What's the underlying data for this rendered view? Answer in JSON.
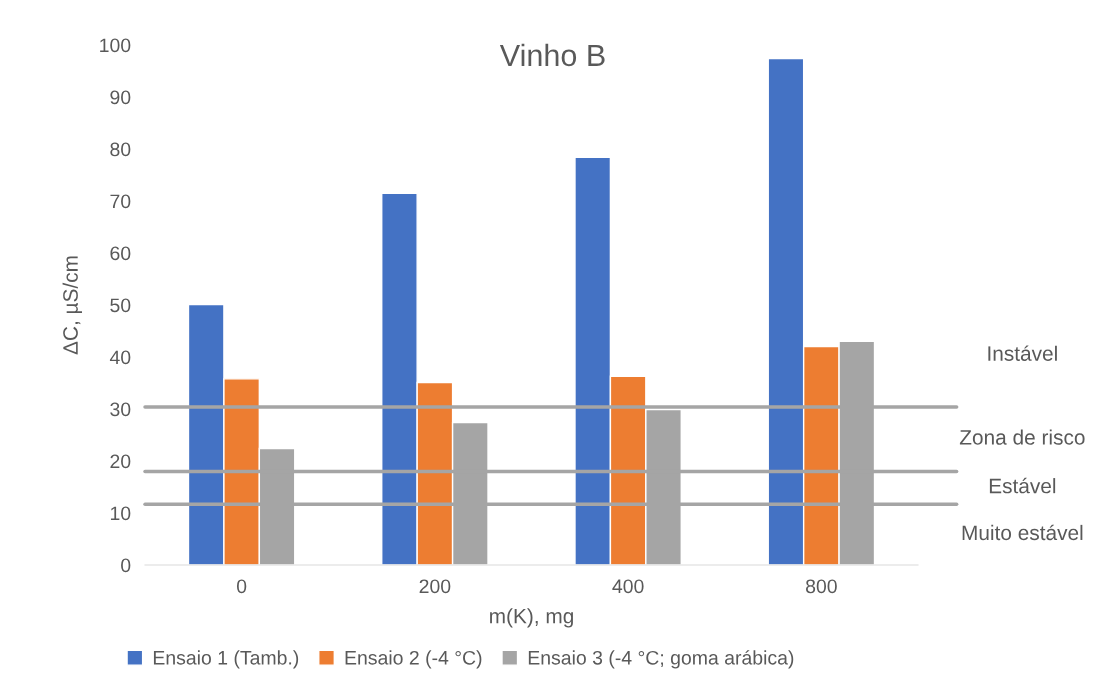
{
  "chart_data": {
    "type": "bar",
    "title": "Vinho B",
    "xlabel": "m(K), mg",
    "ylabel": "ΔC, µS/cm",
    "categories": [
      "0",
      "200",
      "400",
      "800"
    ],
    "series": [
      {
        "name": "Ensaio 1 (Tamb.)",
        "color": "#4472c4",
        "values": [
          50.1,
          71.5,
          78.4,
          97.4
        ]
      },
      {
        "name": "Ensaio 2 (-4 °C)",
        "color": "#ed7d31",
        "values": [
          35.8,
          35.1,
          36.3,
          42.0
        ]
      },
      {
        "name": "Ensaio 3 (-4 °C; goma arábica)",
        "color": "#a5a5a5",
        "values": [
          22.4,
          27.4,
          29.9,
          43.0
        ]
      }
    ],
    "ylim": [
      0,
      100
    ],
    "yticks": [
      0,
      10,
      20,
      30,
      40,
      50,
      60,
      70,
      80,
      90,
      100
    ],
    "ref_lines": [
      {
        "axis": "y",
        "value": 30.4,
        "color": "#a5a5a5"
      },
      {
        "axis": "y",
        "value": 18.0,
        "color": "#a5a5a5"
      },
      {
        "axis": "y",
        "value": 11.7,
        "color": "#a5a5a5"
      }
    ],
    "annotations": [
      "Instável",
      "Zona de risco",
      "Estável",
      "Muito estável"
    ],
    "grid": false,
    "legend": "bottom"
  }
}
